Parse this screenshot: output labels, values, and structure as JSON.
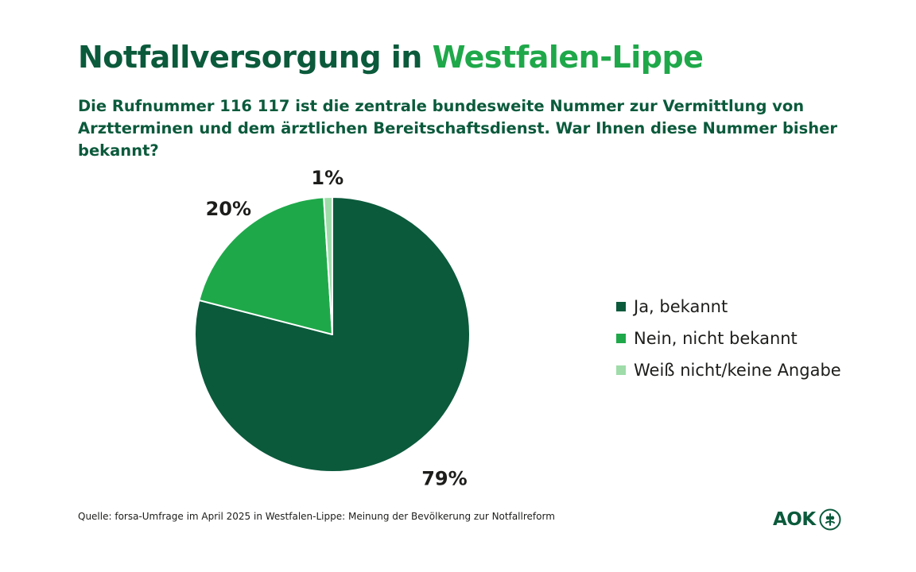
{
  "header": {
    "title_part1": "Notfallversorgung in ",
    "title_part2": "Westfalen-Lippe",
    "question": "Die Rufnummer 116 117 ist die zentrale bundesweite Nummer zur Vermittlung von Arztterminen und dem ärztlichen Bereitschaftsdienst. War Ihnen diese Nummer bisher bekannt?"
  },
  "chart_data": {
    "type": "pie",
    "title": "Notfallversorgung in Westfalen-Lippe",
    "categories": [
      "Ja, bekannt",
      "Nein, nicht bekannt",
      "Weiß nicht/keine Angabe"
    ],
    "values": [
      79,
      20,
      1
    ],
    "value_labels": [
      "79%",
      "20%",
      "1%"
    ],
    "colors": [
      "#0b5a3c",
      "#1fa84a",
      "#9fdcaa"
    ],
    "legend_position": "right"
  },
  "footer": {
    "source": "Quelle: forsa-Umfrage im April 2025 in Westfalen-Lippe: Meinung der Bevölkerung zur Notfallreform",
    "logo_text": "AOK",
    "logo_icon": "aok-tree-icon"
  },
  "colors": {
    "primary": "#0b5a3c",
    "accent": "#1fa84a",
    "light": "#9fdcaa"
  }
}
